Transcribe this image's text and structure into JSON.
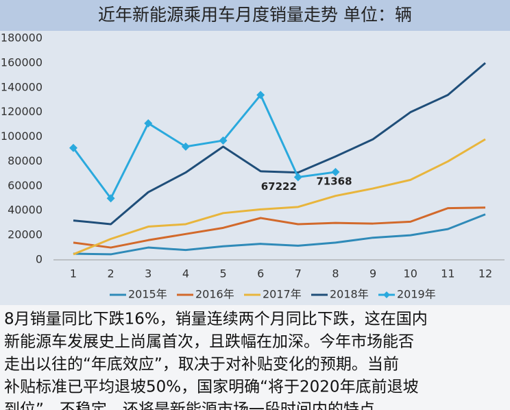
{
  "chart_data": {
    "type": "line",
    "title": "近年新能源乘用车月度销量走势  单位：辆",
    "categories": [
      "1",
      "2",
      "3",
      "4",
      "5",
      "6",
      "7",
      "8",
      "9",
      "10",
      "11",
      "12"
    ],
    "series": [
      {
        "name": "2015年",
        "color": "#2f8ab8",
        "values": [
          5000,
          4500,
          10000,
          8000,
          11000,
          13000,
          11500,
          14000,
          18000,
          20000,
          25000,
          37000
        ]
      },
      {
        "name": "2016年",
        "color": "#d2692b",
        "values": [
          14000,
          10000,
          16000,
          21000,
          26000,
          34000,
          29000,
          30000,
          29500,
          31000,
          42000,
          42500
        ]
      },
      {
        "name": "2017年",
        "color": "#e8b53c",
        "values": [
          4500,
          17000,
          27000,
          29000,
          38000,
          41000,
          43000,
          52000,
          58000,
          65000,
          80000,
          98000
        ]
      },
      {
        "name": "2018年",
        "color": "#1f4e79",
        "values": [
          32000,
          29000,
          55000,
          71000,
          92000,
          72000,
          71000,
          84000,
          98000,
          120000,
          134000,
          160000
        ]
      },
      {
        "name": "2019年",
        "color": "#2aa9dd",
        "marker": "diamond",
        "values": [
          91000,
          50000,
          111000,
          92000,
          97000,
          134000,
          67222,
          71368,
          null,
          null,
          null,
          null
        ],
        "value_labels": [
          null,
          null,
          null,
          null,
          null,
          null,
          "67222",
          "71368",
          null,
          null,
          null,
          null
        ]
      }
    ],
    "ylim": [
      0,
      180000
    ],
    "yticks": [
      0,
      20000,
      40000,
      60000,
      80000,
      100000,
      120000,
      140000,
      160000,
      180000
    ],
    "legend": "bottom"
  },
  "body_text": [
    "8月销量同比下跌16%，销量连续两个月同比下跌，这在国内",
    "新能源车发展史上尚属首次，且跌幅在加深。今年市场能否",
    "走出以往的“年底效应”，取决于对补贴变化的预期。当前",
    "补贴标准已平均退坡50%，国家明确“将于2020年底前退坡",
    "到位”，不稳定，还将是新能源市场一段时间内的特点。"
  ]
}
